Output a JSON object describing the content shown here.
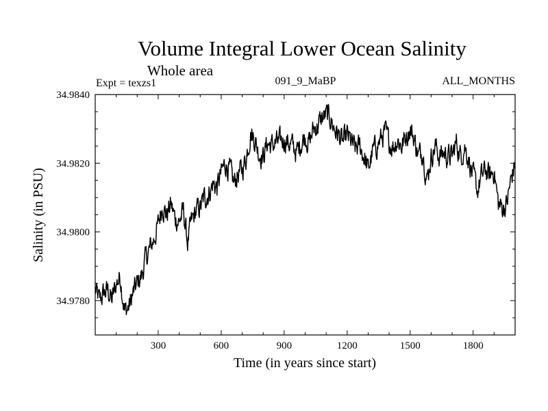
{
  "chart_data": {
    "type": "line",
    "title": "Volume Integral Lower Ocean Salinity",
    "subtitle": "Whole area",
    "expt_label": "Expt = texzs1",
    "run_label": "091_9_MaBP",
    "months_label": "ALL_MONTHS",
    "xlabel": "Time (in years since start)",
    "ylabel": "Salinity (in PSU)",
    "xlim": [
      0,
      2000
    ],
    "ylim": [
      34.977,
      34.984
    ],
    "x_ticks": [
      300,
      600,
      900,
      1200,
      1500,
      1800
    ],
    "x_tick_labels": [
      "300",
      "600",
      "900",
      "1200",
      "1500",
      "1800"
    ],
    "y_ticks": [
      34.978,
      34.98,
      34.982,
      34.984
    ],
    "y_tick_labels": [
      "34.9780",
      "34.9800",
      "34.9820",
      "34.9840"
    ],
    "grid": false,
    "series": [
      {
        "name": "Salinity",
        "color": "#000000",
        "anchor_x": [
          0,
          20,
          40,
          60,
          80,
          100,
          120,
          140,
          160,
          180,
          200,
          220,
          240,
          260,
          280,
          300,
          320,
          340,
          360,
          380,
          400,
          420,
          440,
          460,
          480,
          500,
          520,
          540,
          560,
          580,
          600,
          620,
          640,
          660,
          680,
          700,
          720,
          740,
          760,
          780,
          800,
          820,
          840,
          860,
          880,
          900,
          920,
          940,
          960,
          980,
          1000,
          1020,
          1040,
          1060,
          1080,
          1100,
          1120,
          1140,
          1160,
          1180,
          1200,
          1220,
          1240,
          1260,
          1280,
          1300,
          1320,
          1340,
          1360,
          1380,
          1400,
          1420,
          1440,
          1460,
          1480,
          1500,
          1520,
          1540,
          1560,
          1580,
          1600,
          1620,
          1640,
          1660,
          1680,
          1700,
          1720,
          1740,
          1760,
          1780,
          1800,
          1820,
          1840,
          1860,
          1880,
          1900,
          1920,
          1940,
          1960,
          1980,
          2000
        ],
        "anchor_y": [
          34.9783,
          34.978,
          34.9782,
          34.9783,
          34.978,
          34.9785,
          34.9787,
          34.9777,
          34.9778,
          34.9782,
          34.9785,
          34.9787,
          34.9792,
          34.9795,
          34.9798,
          34.9802,
          34.9808,
          34.9805,
          34.9808,
          34.9804,
          34.9803,
          34.9806,
          34.9797,
          34.9803,
          34.9806,
          34.9807,
          34.981,
          34.9811,
          34.9814,
          34.9813,
          34.9817,
          34.982,
          34.9818,
          34.9814,
          34.9817,
          34.9818,
          34.9822,
          34.9829,
          34.9827,
          34.9823,
          34.9822,
          34.9826,
          34.9825,
          34.9826,
          34.9826,
          34.9827,
          34.9826,
          34.9825,
          34.9823,
          34.9826,
          34.9828,
          34.9826,
          34.983,
          34.9831,
          34.9833,
          34.9834,
          34.9833,
          34.983,
          34.9828,
          34.9826,
          34.9828,
          34.9826,
          34.9824,
          34.9825,
          34.9822,
          34.9818,
          34.9823,
          34.9825,
          34.9827,
          34.9829,
          34.9826,
          34.9825,
          34.9827,
          34.9825,
          34.9828,
          34.983,
          34.9827,
          34.9822,
          34.9824,
          34.9815,
          34.9822,
          34.9825,
          34.9822,
          34.9823,
          34.9822,
          34.9822,
          34.9826,
          34.9822,
          34.9825,
          34.9821,
          34.9816,
          34.9812,
          34.9816,
          34.9818,
          34.9816,
          34.9818,
          34.9808,
          34.9807,
          34.9808,
          34.9815,
          34.982
        ]
      }
    ]
  }
}
